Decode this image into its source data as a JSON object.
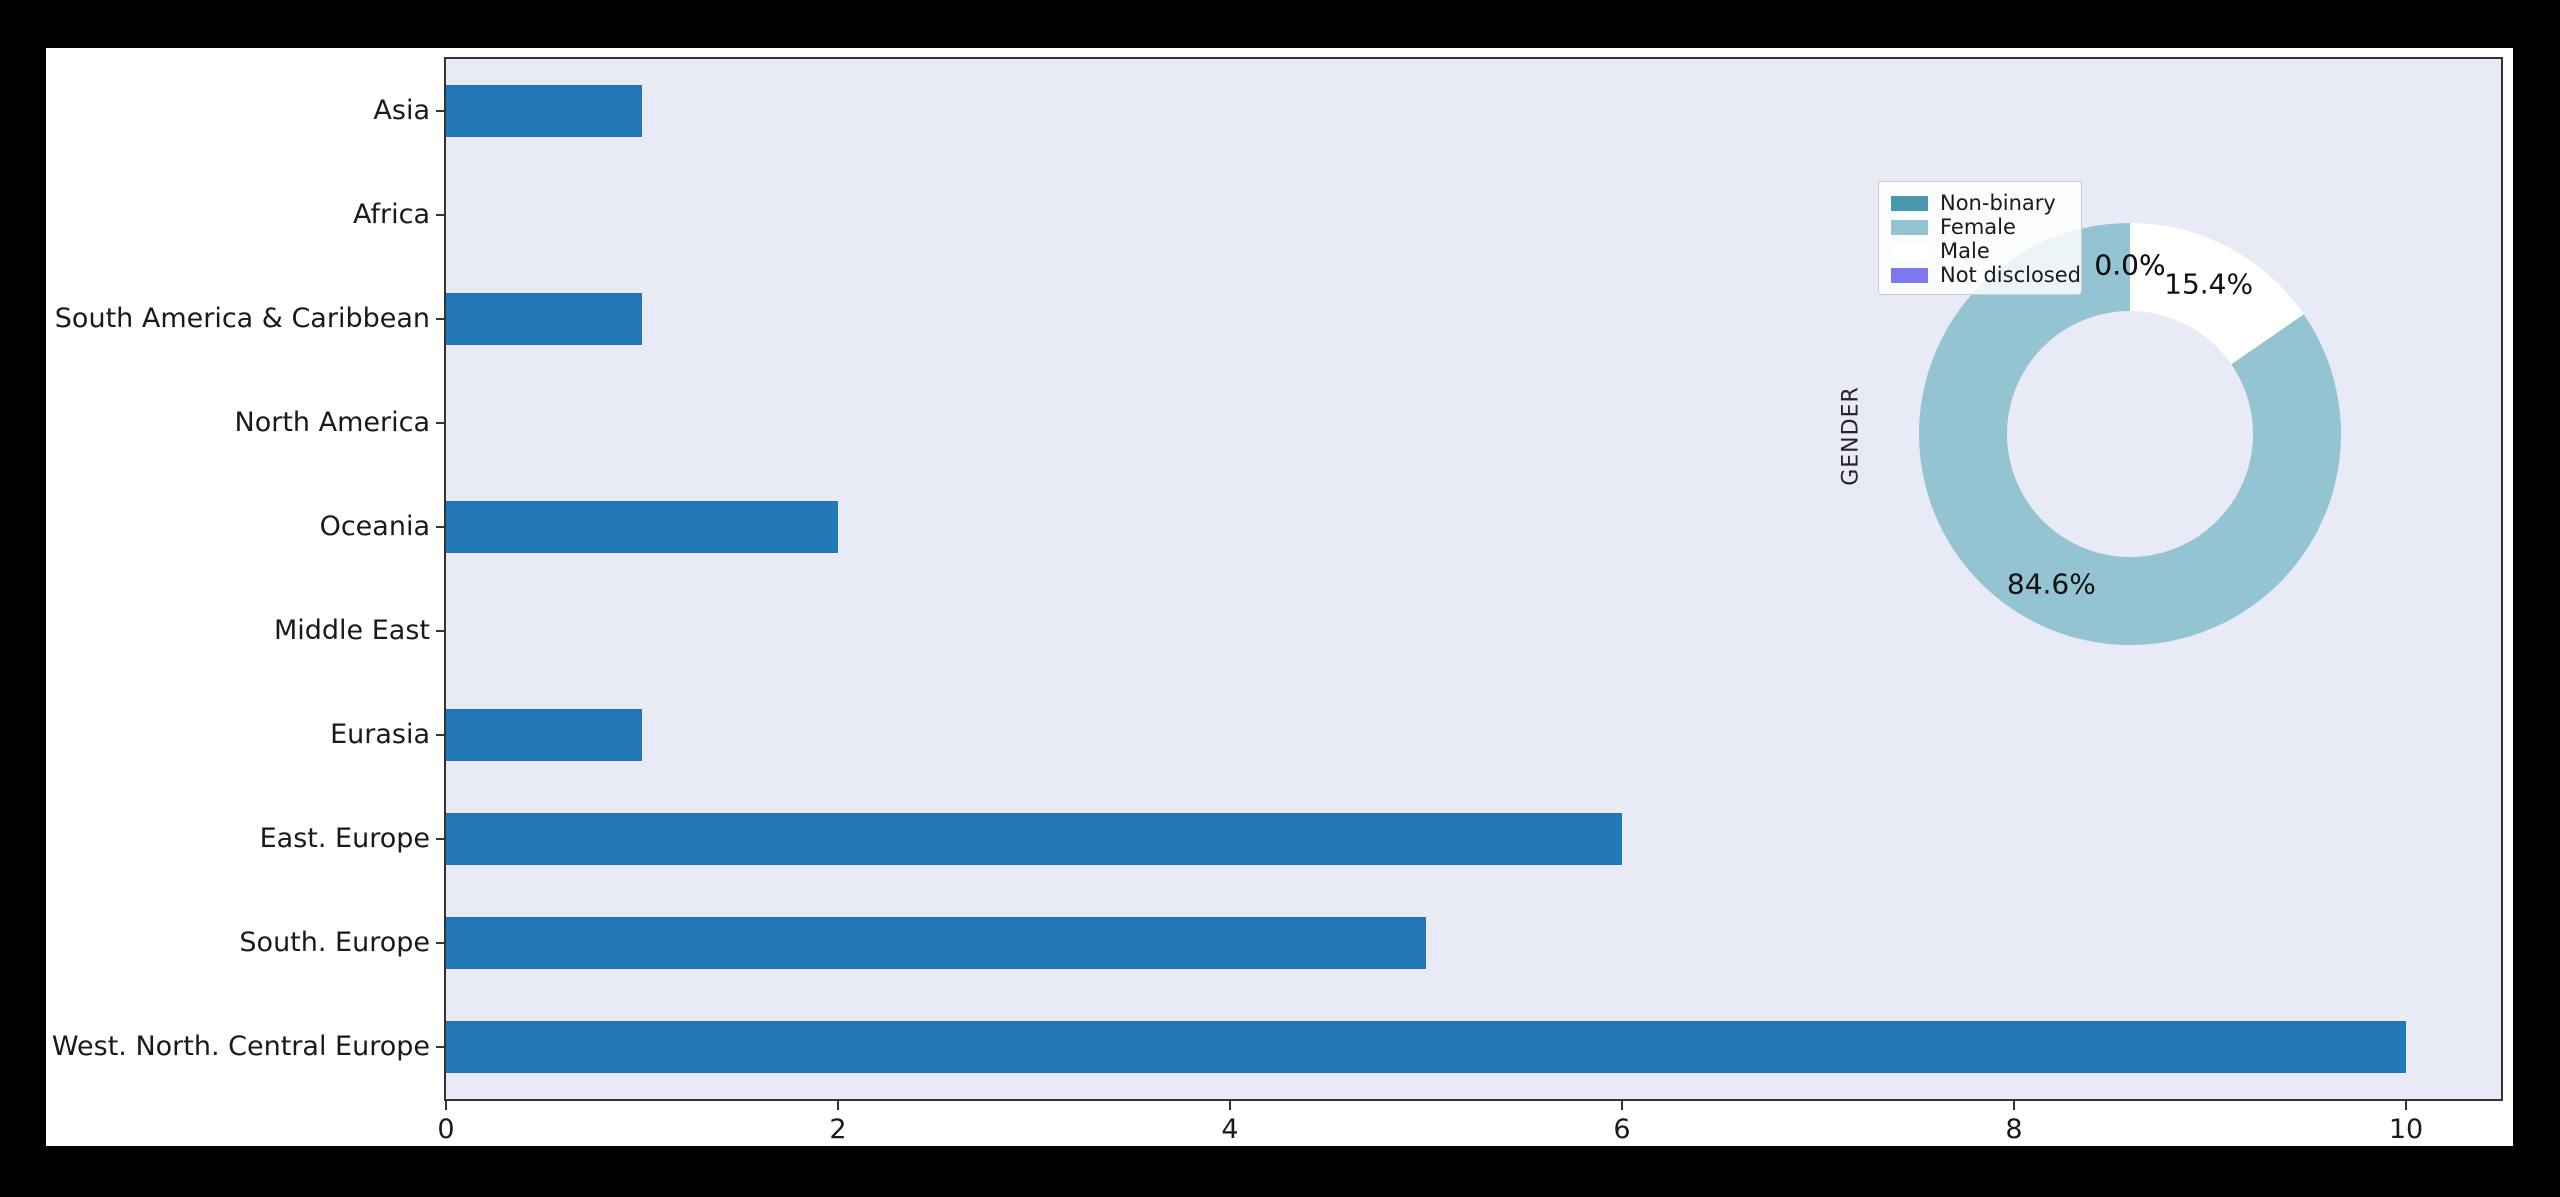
{
  "figure": {
    "canvas_background": "#000000",
    "figure_background": "#ffffff",
    "plot_background": "#e8ebf5",
    "spine_color": "#333333",
    "text_color": "#1a1a1a"
  },
  "chart_data": [
    {
      "type": "bar",
      "orientation": "horizontal",
      "title": "",
      "xlabel": "",
      "ylabel": "",
      "categories": [
        "Asia",
        "Africa",
        "South America & Caribbean",
        "North America",
        "Oceania",
        "Middle East",
        "Eurasia",
        "East. Europe",
        "South. Europe",
        "West. North. Central Europe"
      ],
      "values": [
        1,
        0,
        1,
        0,
        2,
        0,
        1,
        6,
        5,
        10
      ],
      "xticks": [
        0,
        2,
        4,
        6,
        8,
        10
      ],
      "xlim": [
        0,
        10.49
      ],
      "grid": false,
      "bar_color": "#2277b4"
    },
    {
      "type": "pie",
      "subtype": "donut",
      "ylabel": "GENDER",
      "start_angle": 90,
      "direction": "counterclockwise",
      "legend_position": "upper left of donut",
      "slices": [
        {
          "label": "Non-binary",
          "value": 0.0,
          "pct_label": "0.0%",
          "color": "#4a96ac"
        },
        {
          "label": "Female",
          "value": 84.6,
          "pct_label": "84.6%",
          "color": "#94c3d2"
        },
        {
          "label": "Male",
          "value": 15.4,
          "pct_label": "15.4%",
          "color": "#ffffff"
        },
        {
          "label": "Not disclosed",
          "value": 0.0,
          "pct_label": "0.0%",
          "color": "#7d78f0"
        }
      ]
    }
  ]
}
